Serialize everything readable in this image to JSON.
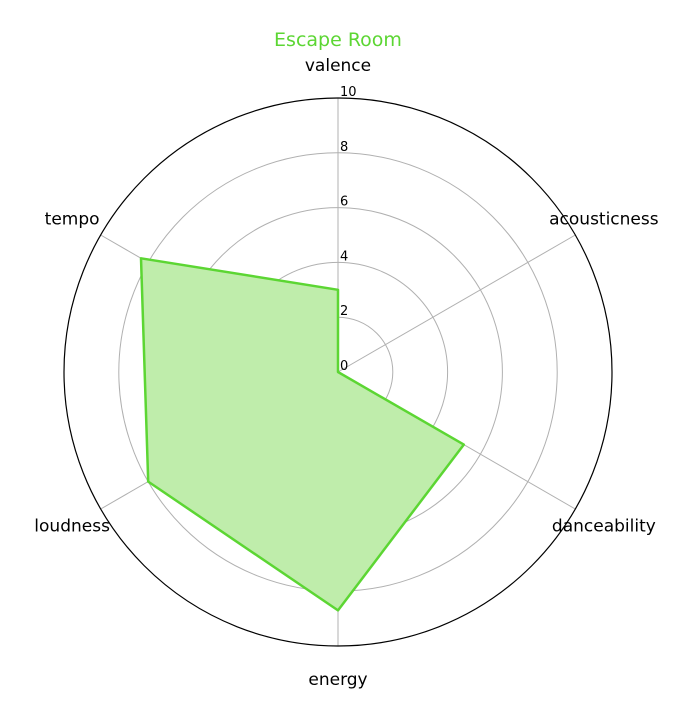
{
  "chart_data": {
    "type": "radar",
    "title": "Escape Room",
    "axes": [
      "valence",
      "acousticness",
      "danceability",
      "energy",
      "loudness",
      "tempo"
    ],
    "series": [
      {
        "name": "",
        "values": [
          3.0,
          0.0,
          5.3,
          8.7,
          8.0,
          8.3
        ]
      }
    ],
    "rlim": [
      0,
      10
    ],
    "rticks": [
      "0",
      "2",
      "4",
      "6",
      "8",
      "10"
    ],
    "grid": true,
    "colors": {
      "series": "#5cd633",
      "fill": "#bfedab",
      "title": "#5cd633",
      "grid": "#b0b0b0",
      "frame": "#000000"
    }
  }
}
